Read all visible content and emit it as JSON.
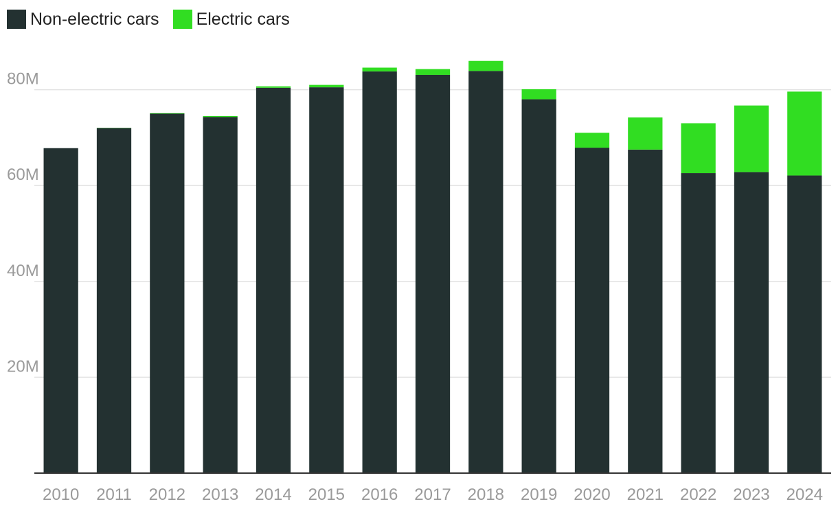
{
  "legend": {
    "items": [
      {
        "label": "Non-electric cars",
        "color": "#233131"
      },
      {
        "label": "Electric cars",
        "color": "#31dd22"
      }
    ]
  },
  "chart_data": {
    "type": "bar",
    "stacked": true,
    "categories": [
      "2010",
      "2011",
      "2012",
      "2013",
      "2014",
      "2015",
      "2016",
      "2017",
      "2018",
      "2019",
      "2020",
      "2021",
      "2022",
      "2023",
      "2024"
    ],
    "series": [
      {
        "name": "Non-electric cars",
        "color": "#233131",
        "values": [
          67.8,
          72.0,
          75.0,
          74.3,
          80.4,
          80.5,
          83.8,
          83.1,
          83.9,
          78.0,
          67.9,
          67.5,
          62.6,
          62.8,
          62.1
        ]
      },
      {
        "name": "Electric cars",
        "color": "#31dd22",
        "values": [
          0.0,
          0.05,
          0.1,
          0.2,
          0.3,
          0.5,
          0.8,
          1.2,
          2.1,
          2.1,
          3.1,
          6.7,
          10.4,
          13.9,
          17.5
        ]
      }
    ],
    "yticks": [
      {
        "value": 20,
        "label": "20M"
      },
      {
        "value": 40,
        "label": "40M"
      },
      {
        "value": 60,
        "label": "60M"
      },
      {
        "value": 80,
        "label": "80M"
      }
    ],
    "ylim": [
      0,
      95
    ],
    "grid": true,
    "legend_position": "top-left",
    "title": "",
    "xlabel": "",
    "ylabel": ""
  }
}
